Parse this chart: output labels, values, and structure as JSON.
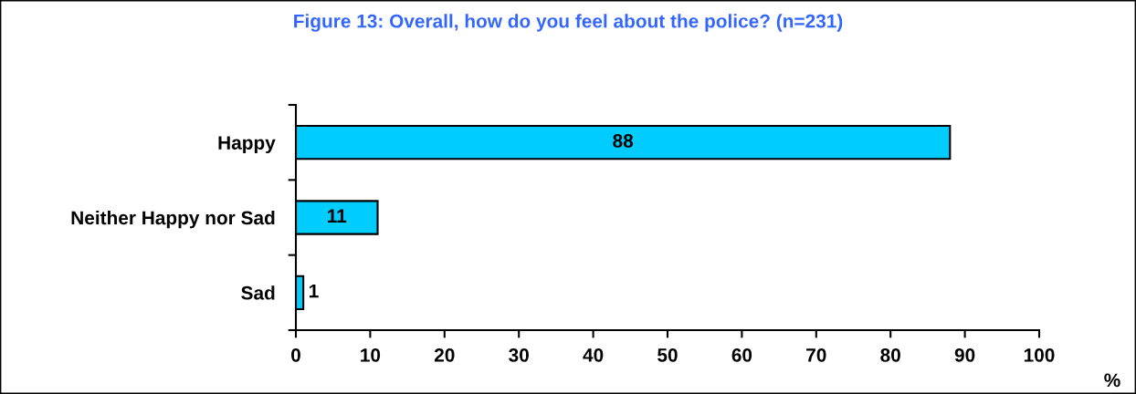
{
  "chart_data": {
    "type": "bar",
    "orientation": "horizontal",
    "title": "Figure 13: Overall, how do you feel about the police? (n=231)",
    "xlabel": "%",
    "categories": [
      "Happy",
      "Neither Happy nor Sad",
      "Sad"
    ],
    "values": [
      88,
      11,
      1
    ],
    "color": "#00ccff",
    "data_labels": true,
    "xlim": [
      0,
      100
    ],
    "xticks": [
      0,
      10,
      20,
      30,
      40,
      50,
      60,
      70,
      80,
      90,
      100
    ],
    "grid": false,
    "legend": false
  }
}
